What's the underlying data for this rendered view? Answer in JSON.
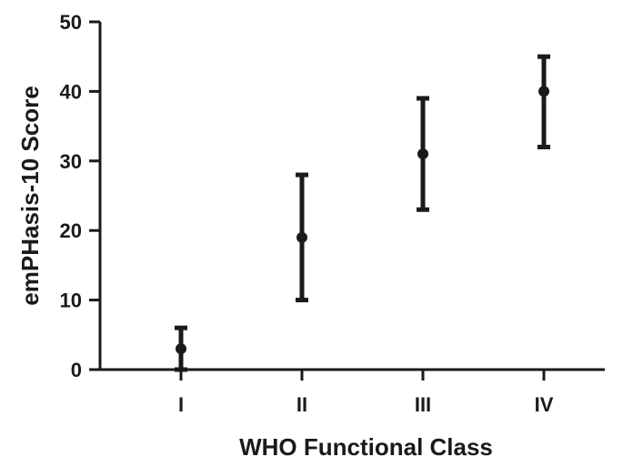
{
  "chart_data": {
    "type": "scatter",
    "categories": [
      "I",
      "II",
      "III",
      "IV"
    ],
    "values": [
      3,
      19,
      31,
      40
    ],
    "error_low": [
      0,
      10,
      23,
      32
    ],
    "error_high": [
      6,
      28,
      39,
      45
    ],
    "xlabel": "WHO Functional Class",
    "ylabel": "emPHasis-10 Score",
    "ylim": [
      0,
      50
    ],
    "yticks": [
      0,
      10,
      20,
      30,
      40,
      50
    ],
    "grid": false,
    "color": "#1a1a1a"
  }
}
